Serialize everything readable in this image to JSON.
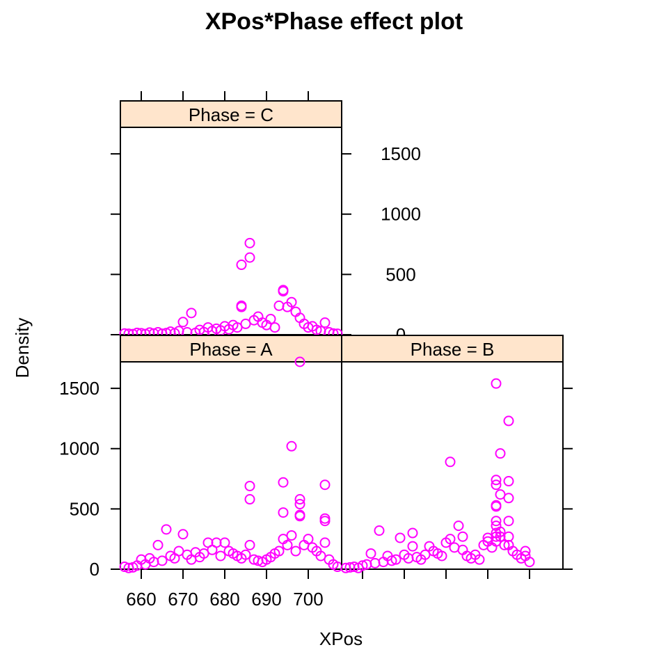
{
  "title": "XPos*Phase effect plot",
  "xlabel": "XPos",
  "ylabel": "Density",
  "colors": {
    "points": "#ff00ff",
    "strip_bg": "#ffe5cc",
    "frame": "#000000"
  },
  "chart_data": {
    "type": "scatter",
    "layout": "trellis",
    "title": "XPos*Phase effect plot",
    "xlabel": "XPos",
    "ylabel": "Density",
    "xlim": [
      655,
      708
    ],
    "ylim": [
      0,
      1720
    ],
    "x_ticks": [
      660,
      670,
      680,
      690,
      700
    ],
    "y_ticks": [
      0,
      500,
      1000,
      1500
    ],
    "panels": [
      {
        "strip": "Phase = C",
        "points": [
          [
            656,
            10
          ],
          [
            657,
            8
          ],
          [
            658,
            5
          ],
          [
            659,
            15
          ],
          [
            660,
            12
          ],
          [
            661,
            6
          ],
          [
            662,
            18
          ],
          [
            663,
            10
          ],
          [
            664,
            20
          ],
          [
            665,
            8
          ],
          [
            666,
            14
          ],
          [
            667,
            25
          ],
          [
            668,
            12
          ],
          [
            669,
            30
          ],
          [
            670,
            105
          ],
          [
            671,
            20
          ],
          [
            672,
            180
          ],
          [
            673,
            15
          ],
          [
            674,
            40
          ],
          [
            675,
            22
          ],
          [
            676,
            60
          ],
          [
            677,
            30
          ],
          [
            678,
            50
          ],
          [
            679,
            35
          ],
          [
            680,
            70
          ],
          [
            681,
            45
          ],
          [
            682,
            80
          ],
          [
            683,
            60
          ],
          [
            684,
            240
          ],
          [
            684,
            230
          ],
          [
            684,
            580
          ],
          [
            685,
            90
          ],
          [
            686,
            640
          ],
          [
            686,
            760
          ],
          [
            687,
            120
          ],
          [
            688,
            150
          ],
          [
            689,
            100
          ],
          [
            690,
            80
          ],
          [
            691,
            130
          ],
          [
            692,
            60
          ],
          [
            693,
            240
          ],
          [
            694,
            370
          ],
          [
            694,
            360
          ],
          [
            695,
            230
          ],
          [
            696,
            270
          ],
          [
            697,
            190
          ],
          [
            698,
            140
          ],
          [
            699,
            90
          ],
          [
            700,
            60
          ],
          [
            701,
            70
          ],
          [
            702,
            40
          ],
          [
            703,
            30
          ],
          [
            704,
            100
          ],
          [
            705,
            20
          ],
          [
            706,
            10
          ],
          [
            707,
            8
          ]
        ]
      },
      {
        "strip": "Phase = A",
        "points": [
          [
            656,
            20
          ],
          [
            657,
            10
          ],
          [
            658,
            15
          ],
          [
            659,
            30
          ],
          [
            660,
            80
          ],
          [
            661,
            40
          ],
          [
            662,
            90
          ],
          [
            663,
            60
          ],
          [
            664,
            200
          ],
          [
            665,
            70
          ],
          [
            666,
            330
          ],
          [
            667,
            110
          ],
          [
            668,
            90
          ],
          [
            669,
            150
          ],
          [
            670,
            290
          ],
          [
            671,
            120
          ],
          [
            672,
            80
          ],
          [
            673,
            140
          ],
          [
            674,
            100
          ],
          [
            675,
            130
          ],
          [
            676,
            220
          ],
          [
            677,
            160
          ],
          [
            678,
            220
          ],
          [
            679,
            110
          ],
          [
            680,
            220
          ],
          [
            681,
            150
          ],
          [
            682,
            130
          ],
          [
            683,
            110
          ],
          [
            684,
            90
          ],
          [
            685,
            120
          ],
          [
            686,
            580
          ],
          [
            686,
            690
          ],
          [
            686,
            200
          ],
          [
            687,
            80
          ],
          [
            688,
            70
          ],
          [
            689,
            60
          ],
          [
            690,
            80
          ],
          [
            691,
            100
          ],
          [
            692,
            130
          ],
          [
            693,
            150
          ],
          [
            694,
            720
          ],
          [
            694,
            470
          ],
          [
            694,
            250
          ],
          [
            695,
            200
          ],
          [
            696,
            1020
          ],
          [
            696,
            280
          ],
          [
            697,
            150
          ],
          [
            698,
            580
          ],
          [
            698,
            540
          ],
          [
            698,
            450
          ],
          [
            698,
            440
          ],
          [
            698,
            1720
          ],
          [
            699,
            200
          ],
          [
            700,
            250
          ],
          [
            701,
            180
          ],
          [
            702,
            150
          ],
          [
            703,
            110
          ],
          [
            704,
            700
          ],
          [
            704,
            420
          ],
          [
            704,
            400
          ],
          [
            704,
            220
          ],
          [
            705,
            80
          ],
          [
            706,
            40
          ],
          [
            707,
            20
          ]
        ]
      },
      {
        "strip": "Phase = B",
        "points": [
          [
            656,
            10
          ],
          [
            657,
            15
          ],
          [
            658,
            20
          ],
          [
            659,
            10
          ],
          [
            660,
            30
          ],
          [
            661,
            40
          ],
          [
            662,
            130
          ],
          [
            663,
            50
          ],
          [
            664,
            320
          ],
          [
            665,
            60
          ],
          [
            666,
            110
          ],
          [
            667,
            70
          ],
          [
            668,
            80
          ],
          [
            669,
            260
          ],
          [
            670,
            120
          ],
          [
            671,
            90
          ],
          [
            672,
            300
          ],
          [
            672,
            190
          ],
          [
            673,
            100
          ],
          [
            674,
            80
          ],
          [
            675,
            120
          ],
          [
            676,
            190
          ],
          [
            677,
            150
          ],
          [
            678,
            130
          ],
          [
            679,
            110
          ],
          [
            680,
            220
          ],
          [
            681,
            890
          ],
          [
            681,
            250
          ],
          [
            682,
            180
          ],
          [
            683,
            360
          ],
          [
            684,
            270
          ],
          [
            684,
            160
          ],
          [
            685,
            110
          ],
          [
            686,
            90
          ],
          [
            687,
            120
          ],
          [
            688,
            80
          ],
          [
            689,
            200
          ],
          [
            690,
            260
          ],
          [
            690,
            230
          ],
          [
            691,
            180
          ],
          [
            692,
            300
          ],
          [
            692,
            1540
          ],
          [
            692,
            740
          ],
          [
            692,
            700
          ],
          [
            692,
            530
          ],
          [
            692,
            520
          ],
          [
            692,
            400
          ],
          [
            692,
            360
          ],
          [
            692,
            270
          ],
          [
            692,
            230
          ],
          [
            693,
            620
          ],
          [
            693,
            960
          ],
          [
            693,
            310
          ],
          [
            693,
            270
          ],
          [
            694,
            200
          ],
          [
            695,
            1230
          ],
          [
            695,
            730
          ],
          [
            695,
            590
          ],
          [
            695,
            400
          ],
          [
            695,
            270
          ],
          [
            695,
            200
          ],
          [
            696,
            150
          ],
          [
            697,
            120
          ],
          [
            698,
            90
          ],
          [
            699,
            150
          ],
          [
            699,
            110
          ],
          [
            700,
            60
          ]
        ]
      }
    ],
    "grid": false,
    "legend": "none"
  }
}
